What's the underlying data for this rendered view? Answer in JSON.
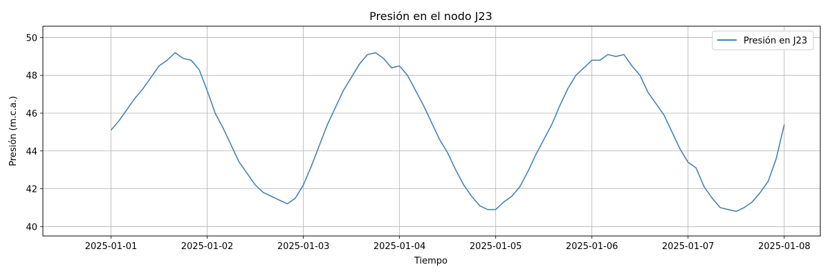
{
  "chart_data": {
    "type": "line",
    "title": "Presión en el nodo J23",
    "xlabel": "Tiempo",
    "ylabel": "Presión (m.c.a.)",
    "x_ticks": [
      "2025-01-01",
      "2025-01-02",
      "2025-01-03",
      "2025-01-04",
      "2025-01-05",
      "2025-01-06",
      "2025-01-07",
      "2025-01-08"
    ],
    "y_ticks": [
      40,
      42,
      44,
      46,
      48,
      50
    ],
    "xlim": [
      "2024-12-31T07:00",
      "2025-01-08T09:00"
    ],
    "ylim": [
      39.5,
      50.6
    ],
    "grid": true,
    "legend": {
      "placement": "top-right"
    },
    "series": [
      {
        "name": "Presión en J23",
        "color": "#4682b4",
        "points": [
          [
            "2025-01-01T00:00",
            45.1
          ],
          [
            "2025-01-01T02:00",
            45.6
          ],
          [
            "2025-01-01T04:00",
            46.2
          ],
          [
            "2025-01-01T06:00",
            46.8
          ],
          [
            "2025-01-01T08:00",
            47.3
          ],
          [
            "2025-01-01T10:00",
            47.9
          ],
          [
            "2025-01-01T12:00",
            48.5
          ],
          [
            "2025-01-01T14:00",
            48.8
          ],
          [
            "2025-01-01T16:00",
            49.2
          ],
          [
            "2025-01-01T18:00",
            48.9
          ],
          [
            "2025-01-01T20:00",
            48.8
          ],
          [
            "2025-01-01T22:00",
            48.3
          ],
          [
            "2025-01-02T00:00",
            47.2
          ],
          [
            "2025-01-02T02:00",
            46.0
          ],
          [
            "2025-01-02T04:00",
            45.2
          ],
          [
            "2025-01-02T06:00",
            44.3
          ],
          [
            "2025-01-02T08:00",
            43.4
          ],
          [
            "2025-01-02T10:00",
            42.8
          ],
          [
            "2025-01-02T12:00",
            42.2
          ],
          [
            "2025-01-02T14:00",
            41.8
          ],
          [
            "2025-01-02T16:00",
            41.6
          ],
          [
            "2025-01-02T18:00",
            41.4
          ],
          [
            "2025-01-02T20:00",
            41.2
          ],
          [
            "2025-01-02T22:00",
            41.5
          ],
          [
            "2025-01-03T00:00",
            42.2
          ],
          [
            "2025-01-03T02:00",
            43.2
          ],
          [
            "2025-01-03T04:00",
            44.3
          ],
          [
            "2025-01-03T06:00",
            45.4
          ],
          [
            "2025-01-03T08:00",
            46.3
          ],
          [
            "2025-01-03T10:00",
            47.2
          ],
          [
            "2025-01-03T12:00",
            47.9
          ],
          [
            "2025-01-03T14:00",
            48.6
          ],
          [
            "2025-01-03T16:00",
            49.1
          ],
          [
            "2025-01-03T18:00",
            49.2
          ],
          [
            "2025-01-03T20:00",
            48.9
          ],
          [
            "2025-01-03T22:00",
            48.4
          ],
          [
            "2025-01-04T00:00",
            48.5
          ],
          [
            "2025-01-04T02:00",
            48.0
          ],
          [
            "2025-01-04T04:00",
            47.2
          ],
          [
            "2025-01-04T06:00",
            46.4
          ],
          [
            "2025-01-04T08:00",
            45.5
          ],
          [
            "2025-01-04T10:00",
            44.6
          ],
          [
            "2025-01-04T12:00",
            43.9
          ],
          [
            "2025-01-04T14:00",
            43.0
          ],
          [
            "2025-01-04T16:00",
            42.2
          ],
          [
            "2025-01-04T18:00",
            41.6
          ],
          [
            "2025-01-04T20:00",
            41.1
          ],
          [
            "2025-01-04T22:00",
            40.9
          ],
          [
            "2025-01-05T00:00",
            40.9
          ],
          [
            "2025-01-05T02:00",
            41.3
          ],
          [
            "2025-01-05T04:00",
            41.6
          ],
          [
            "2025-01-05T06:00",
            42.1
          ],
          [
            "2025-01-05T08:00",
            42.9
          ],
          [
            "2025-01-05T10:00",
            43.8
          ],
          [
            "2025-01-05T12:00",
            44.6
          ],
          [
            "2025-01-05T14:00",
            45.4
          ],
          [
            "2025-01-05T16:00",
            46.4
          ],
          [
            "2025-01-05T18:00",
            47.3
          ],
          [
            "2025-01-05T20:00",
            48.0
          ],
          [
            "2025-01-05T22:00",
            48.4
          ],
          [
            "2025-01-06T00:00",
            48.8
          ],
          [
            "2025-01-06T02:00",
            48.8
          ],
          [
            "2025-01-06T04:00",
            49.1
          ],
          [
            "2025-01-06T06:00",
            49.0
          ],
          [
            "2025-01-06T08:00",
            49.1
          ],
          [
            "2025-01-06T10:00",
            48.5
          ],
          [
            "2025-01-06T12:00",
            48.0
          ],
          [
            "2025-01-06T14:00",
            47.1
          ],
          [
            "2025-01-06T16:00",
            46.5
          ],
          [
            "2025-01-06T18:00",
            45.9
          ],
          [
            "2025-01-06T20:00",
            45.0
          ],
          [
            "2025-01-06T22:00",
            44.1
          ],
          [
            "2025-01-07T00:00",
            43.4
          ],
          [
            "2025-01-07T02:00",
            43.1
          ],
          [
            "2025-01-07T04:00",
            42.1
          ],
          [
            "2025-01-07T06:00",
            41.5
          ],
          [
            "2025-01-07T08:00",
            41.0
          ],
          [
            "2025-01-07T10:00",
            40.9
          ],
          [
            "2025-01-07T12:00",
            40.8
          ],
          [
            "2025-01-07T14:00",
            41.0
          ],
          [
            "2025-01-07T16:00",
            41.3
          ],
          [
            "2025-01-07T18:00",
            41.8
          ],
          [
            "2025-01-07T20:00",
            42.4
          ],
          [
            "2025-01-07T22:00",
            43.6
          ],
          [
            "2025-01-08T00:00",
            45.4
          ]
        ]
      }
    ]
  }
}
